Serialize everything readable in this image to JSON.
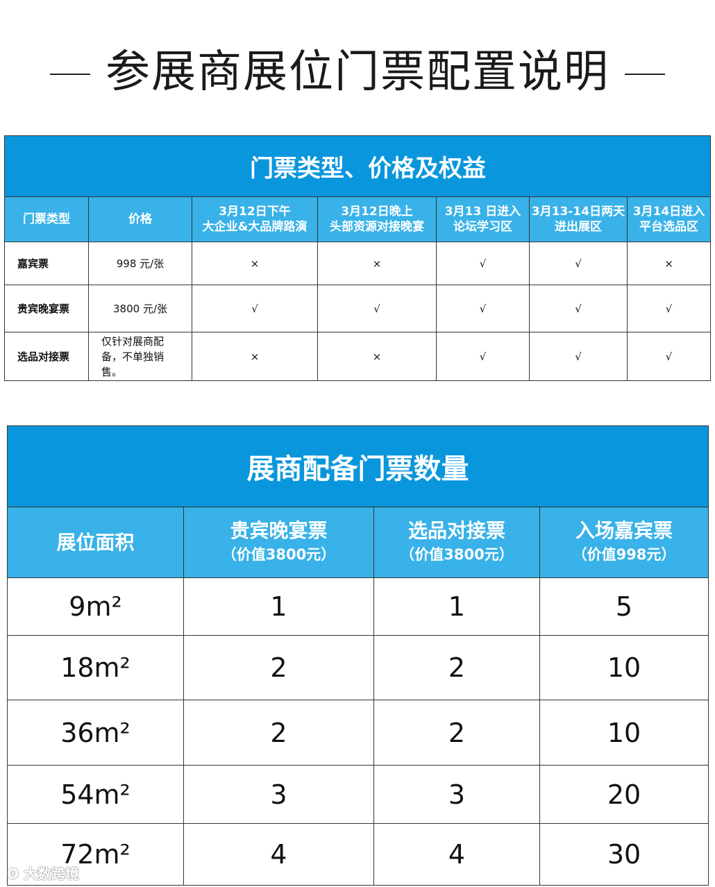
{
  "title": "参展商展位门票配置说明",
  "table1": {
    "title": "门票类型、价格及权益",
    "headers": [
      "门票类型",
      "价格",
      "3月12日下午\n大企业&大品牌路演",
      "3月12日晚上\n头部资源对接晚宴",
      "3月13 日进入\n论坛学习区",
      "3月13-14日两天\n进出展区",
      "3月14日进入\n平台选品区"
    ],
    "rows": [
      {
        "name": "嘉宾票",
        "price": "998 元/张",
        "access": [
          "×",
          "×",
          "√",
          "√",
          "×"
        ]
      },
      {
        "name": "贵宾晚宴票",
        "price": "3800 元/张",
        "access": [
          "√",
          "√",
          "√",
          "√",
          "√"
        ]
      },
      {
        "name": "选品对接票",
        "price": "仅针对展商配备，不单独销售。",
        "access": [
          "×",
          "×",
          "√",
          "√",
          "√"
        ]
      }
    ]
  },
  "table2": {
    "title": "展商配备门票数量",
    "headers": [
      {
        "main": "展位面积",
        "sub": ""
      },
      {
        "main": "贵宾晚宴票",
        "sub": "（价值3800元）"
      },
      {
        "main": "选品对接票",
        "sub": "（价值3800元）"
      },
      {
        "main": "入场嘉宾票",
        "sub": "（价值998元）"
      }
    ],
    "rows": [
      [
        "9m²",
        "1",
        "1",
        "5"
      ],
      [
        "18m²",
        "2",
        "2",
        "10"
      ],
      [
        "36m²",
        "2",
        "2",
        "10"
      ],
      [
        "54m²",
        "3",
        "3",
        "20"
      ],
      [
        "72m²",
        "4",
        "4",
        "30"
      ]
    ]
  },
  "watermark": "大数跨境",
  "colors": {
    "band": "#0a96dc",
    "header": "#38b2e8",
    "mark": "#e11111"
  }
}
